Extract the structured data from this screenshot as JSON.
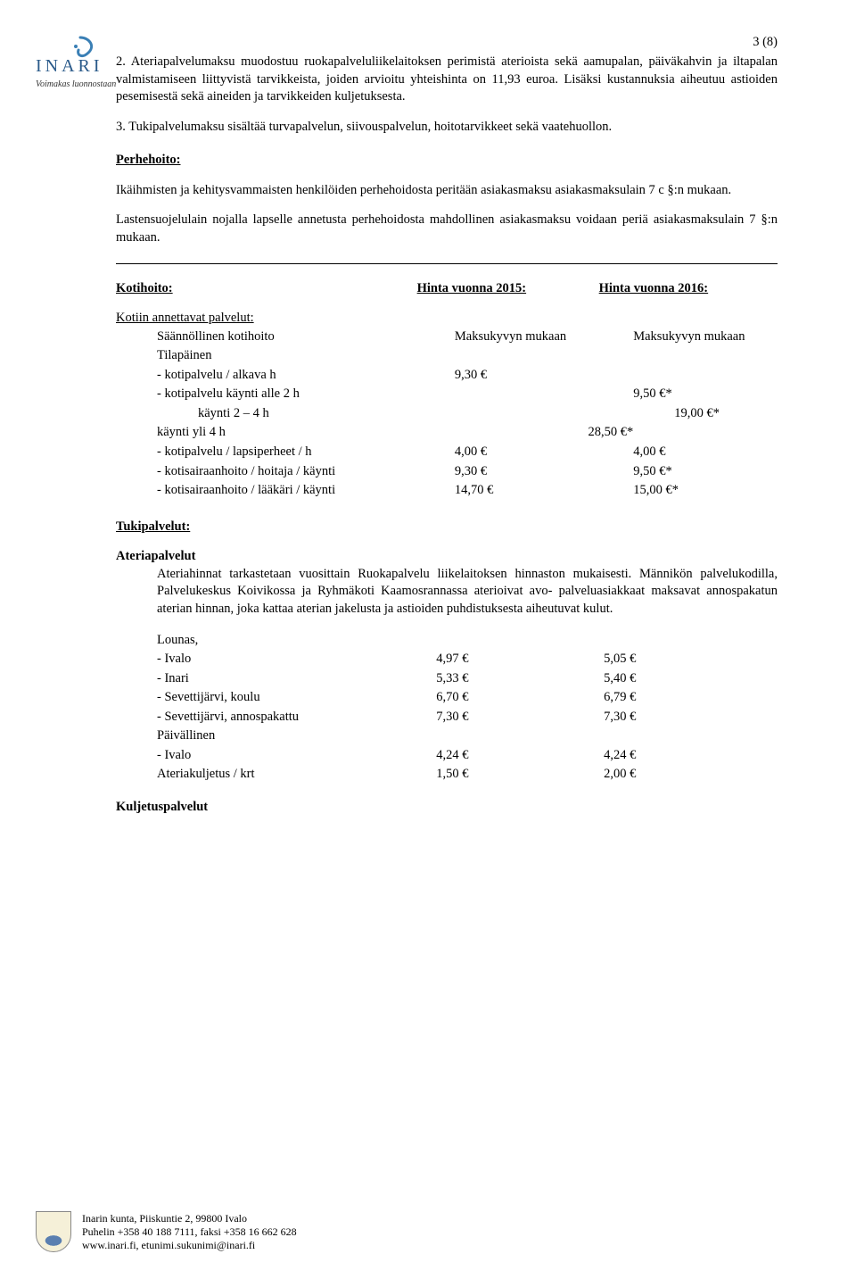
{
  "page_number": "3 (8)",
  "logo": {
    "word": "INARI",
    "tagline": "Voimakas luonnostaan",
    "text_color": "#2a5a8a",
    "swoosh_color": "#3a7fb5"
  },
  "paragraphs": {
    "p2": "2. Ateriapalvelumaksu muodostuu ruokapalveluliikelaitoksen perimistä aterioista sekä aamupalan, päiväkahvin ja iltapalan valmistamiseen liittyvistä tarvikkeista, joiden arvioitu yhteishinta on 11,93 euroa. Lisäksi kustannuksia aiheutuu astioiden pesemisestä sekä aineiden ja tarvikkeiden kuljetuksesta.",
    "p3": "3. Tukipalvelumaksu sisältää turvapalvelun, siivouspalvelun, hoitotarvikkeet sekä vaatehuollon.",
    "perhe_head": "Perhehoito:",
    "perhe_p1": "Ikäihmisten ja kehitysvammaisten henkilöiden perhehoidosta peritään asiakasmaksu asiakasmaksulain 7 c §:n mukaan.",
    "perhe_p2": "Lastensuojelulain nojalla lapselle annetusta perhehoidosta mahdollinen asiakasmaksu voidaan periä asiakasmaksulain 7 §:n mukaan."
  },
  "kotihoito": {
    "head": "Kotihoito:",
    "col2": "Hinta vuonna 2015:",
    "col3": "Hinta vuonna 2016:",
    "annettavat_head": "Kotiin annettavat palvelut:",
    "rows": [
      {
        "label": "Säännöllinen kotihoito",
        "v1": "Maksukyvyn mukaan",
        "v2": "Maksukyvyn mukaan",
        "indent": 1
      },
      {
        "label": "Tilapäinen",
        "v1": "",
        "v2": "",
        "indent": 1
      },
      {
        "label": "- kotipalvelu / alkava h",
        "v1": "9,30 €",
        "v2": "",
        "indent": 1
      },
      {
        "label": "- kotipalvelu käynti alle 2 h",
        "v1": "",
        "v2": "9,50 €*",
        "indent": 1
      },
      {
        "label": "käynti 2 – 4 h",
        "v1": "",
        "v2": "19,00 €*",
        "indent": 2
      },
      {
        "label": "käynti yli 4 h",
        "v1": "",
        "v2": "28,50 €*",
        "indent": 1,
        "v2_in_v1": true
      },
      {
        "label": "- kotipalvelu / lapsiperheet / h",
        "v1": "4,00 €",
        "v2": "4,00 €",
        "indent": 1
      },
      {
        "label": "- kotisairaanhoito / hoitaja / käynti",
        "v1": "9,30 €",
        "v2": "9,50 €*",
        "indent": 1
      },
      {
        "label": "- kotisairaanhoito / lääkäri / käynti",
        "v1": "14,70 €",
        "v2": "15,00 €*",
        "indent": 1
      }
    ]
  },
  "tukipalvelut": {
    "head": "Tukipalvelut:",
    "ateria_head": "Ateriapalvelut",
    "ateria_text": "Ateriahinnat tarkastetaan vuosittain Ruokapalvelu liikelaitoksen hinnaston mukaisesti. Männikön palvelukodilla, Palvelukeskus Koivikossa ja Ryhmäkoti Kaamosrannassa aterioivat avo-           palveluasiakkaat maksavat annospakatun aterian hinnan, joka kattaa aterian jakelusta ja astioiden puhdistuksesta aiheutuvat kulut.",
    "rows": [
      {
        "label": "Lounas,",
        "v1": "",
        "v2": ""
      },
      {
        "label": "- Ivalo",
        "v1": "4,97 €",
        "v2": "5,05 €"
      },
      {
        "label": "- Inari",
        "v1": "5,33 €",
        "v2": "5,40 €"
      },
      {
        "label": "- Sevettijärvi, koulu",
        "v1": "6,70 €",
        "v2": "6,79 €"
      },
      {
        "label": "- Sevettijärvi, annospakattu",
        "v1": "7,30 €",
        "v2": "7,30 €"
      },
      {
        "label": "Päivällinen",
        "v1": "",
        "v2": ""
      },
      {
        "label": "- Ivalo",
        "v1": "4,24 €",
        "v2": "4,24 €"
      },
      {
        "label": "Ateriakuljetus / krt",
        "v1": "1,50 €",
        "v2": "2,00 €"
      }
    ],
    "kuljetus_head": "Kuljetuspalvelut"
  },
  "footer": {
    "line1": "Inarin kunta, Piiskuntie 2, 99800 Ivalo",
    "line2": "Puhelin +358 40 188 7111, faksi +358 16 662 628",
    "line3": "www.inari.fi, etunimi.sukunimi@inari.fi"
  }
}
